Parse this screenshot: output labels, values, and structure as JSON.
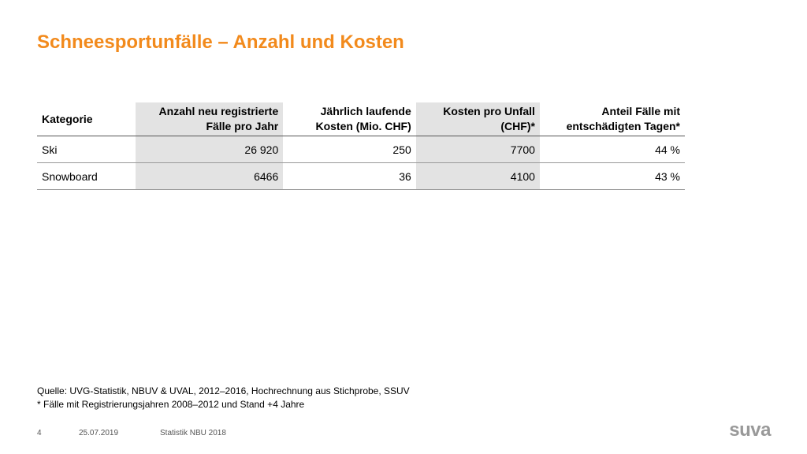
{
  "title": "Schneesportunfälle – Anzahl und Kosten",
  "table": {
    "headers": [
      [
        "Kategorie"
      ],
      [
        "Anzahl neu registrierte",
        "Fälle pro Jahr"
      ],
      [
        "Jährlich laufende",
        "Kosten (Mio. CHF)"
      ],
      [
        "Kosten pro Unfall",
        "(CHF)*"
      ],
      [
        "Anteil Fälle mit",
        "entschädigten Tagen*"
      ]
    ],
    "rows": [
      [
        "Ski",
        "26 920",
        "250",
        "7700",
        "44 %"
      ],
      [
        "Snowboard",
        "6466",
        "36",
        "4100",
        "43 %"
      ]
    ]
  },
  "notes": {
    "source": "Quelle: UVG-Statistik, NBUV & UVAL, 2012–2016, Hochrechnung aus Stichprobe, SSUV",
    "footnote": "* Fälle mit Registrierungsjahren 2008–2012 und Stand +4 Jahre"
  },
  "footer": {
    "page": "4",
    "date": "25.07.2019",
    "label": "Statistik NBU 2018"
  },
  "logo": "suva",
  "colors": {
    "title": "#f28a1c",
    "shade": "#e3e3e3",
    "logo": "#999999"
  }
}
